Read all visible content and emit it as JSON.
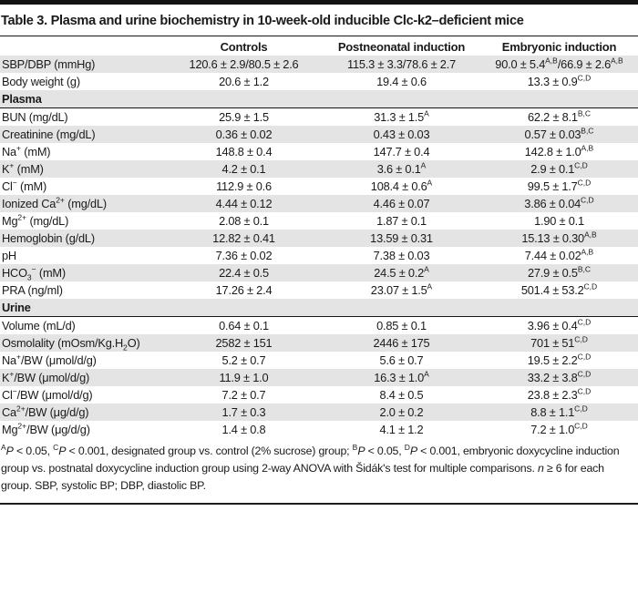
{
  "title": "Table 3. Plasma and urine biochemistry in 10-week-old inducible Clc-k2–deficient mice",
  "columns": [
    "",
    "Controls",
    "Postneonatal induction",
    "Embryonic induction"
  ],
  "rows": [
    {
      "type": "data",
      "label": "SBP/DBP (mmHg)",
      "values": [
        "120.6 ± 2.9/80.5 ± 2.6",
        "115.3 ± 3.3/78.6 ± 2.7",
        "90.0 ± 5.4^{A,B}/66.9 ± 2.6^{A,B}"
      ]
    },
    {
      "type": "data",
      "label": "Body weight (g)",
      "values": [
        "20.6 ± 1.2",
        "19.4 ± 0.6",
        "13.3 ± 0.9^{C,D}"
      ]
    },
    {
      "type": "section",
      "label": "Plasma"
    },
    {
      "type": "data",
      "label": "BUN (mg/dL)",
      "values": [
        "25.9 ± 1.5",
        "31.3 ± 1.5^{A}",
        "62.2 ± 8.1^{B,C}"
      ]
    },
    {
      "type": "data",
      "label": "Creatinine (mg/dL)",
      "values": [
        "0.36 ± 0.02",
        "0.43 ± 0.03",
        "0.57 ± 0.03^{B,C}"
      ]
    },
    {
      "type": "data",
      "label": "Na^{+} (mM)",
      "values": [
        "148.8 ± 0.4",
        "147.7 ± 0.4",
        "142.8 ± 1.0^{A,B}"
      ]
    },
    {
      "type": "data",
      "label": "K^{+} (mM)",
      "values": [
        "4.2 ± 0.1",
        "3.6 ± 0.1^{A}",
        "2.9 ± 0.1^{C,D}"
      ]
    },
    {
      "type": "data",
      "label": "Cl^{−} (mM)",
      "values": [
        "112.9 ± 0.6",
        "108.4 ± 0.6^{A}",
        "99.5 ± 1.7^{C,D}"
      ]
    },
    {
      "type": "data",
      "label": "Ionized Ca^{2+} (mg/dL)",
      "values": [
        "4.44 ± 0.12",
        "4.46 ± 0.07",
        "3.86 ± 0.04^{C,D}"
      ]
    },
    {
      "type": "data",
      "label": "Mg^{2+} (mg/dL)",
      "values": [
        "2.08 ± 0.1",
        "1.87 ± 0.1",
        "1.90 ± 0.1"
      ]
    },
    {
      "type": "data",
      "label": "Hemoglobin (g/dL)",
      "values": [
        "12.82 ± 0.41",
        "13.59 ± 0.31",
        "15.13 ± 0.30^{A,B}"
      ]
    },
    {
      "type": "data",
      "label": "pH",
      "values": [
        "7.36 ± 0.02",
        "7.38 ± 0.03",
        "7.44 ± 0.02^{A,B}"
      ]
    },
    {
      "type": "data",
      "label": "HCO_{3}^{−} (mM)",
      "values": [
        "22.4 ± 0.5",
        "24.5 ± 0.2^{A}",
        "27.9 ± 0.5^{B,C}"
      ]
    },
    {
      "type": "data",
      "label": "PRA (ng/ml)",
      "values": [
        "17.26 ± 2.4",
        "23.07 ± 1.5^{A}",
        "501.4 ± 53.2^{C,D}"
      ]
    },
    {
      "type": "section",
      "label": "Urine"
    },
    {
      "type": "data",
      "label": "Volume (mL/d)",
      "values": [
        "0.64 ± 0.1",
        "0.85 ± 0.1",
        "3.96 ± 0.4^{C,D}"
      ]
    },
    {
      "type": "data",
      "label": "Osmolality (mOsm/Kg.H_{2}O)",
      "values": [
        "2582 ± 151",
        "2446 ± 175",
        "701 ± 51^{C,D}"
      ]
    },
    {
      "type": "data",
      "label": "Na^{+}/BW (μmol/d/g)",
      "values": [
        "5.2 ± 0.7",
        "5.6 ± 0.7",
        "19.5 ± 2.2^{C,D}"
      ]
    },
    {
      "type": "data",
      "label": "K^{+}/BW (μmol/d/g)",
      "values": [
        "11.9 ± 1.0",
        "16.3 ± 1.0^{A}",
        "33.2 ± 3.8^{C,D}"
      ]
    },
    {
      "type": "data",
      "label": "Cl^{−}/BW (μmol/d/g)",
      "values": [
        "7.2 ± 0.7",
        "8.4 ± 0.5",
        "23.8 ± 2.3^{C,D}"
      ]
    },
    {
      "type": "data",
      "label": "Ca^{2+}/BW (μg/d/g)",
      "values": [
        "1.7 ± 0.3",
        "2.0 ± 0.2",
        "8.8 ± 1.1^{C,D}"
      ]
    },
    {
      "type": "data",
      "label": "Mg^{2+}/BW (μg/d/g)",
      "values": [
        "1.4 ± 0.8",
        "4.1 ± 1.2",
        "7.2 ± 1.0^{C,D}"
      ]
    }
  ],
  "footnote": "^{A}//P// < 0.05, ^{C}//P// < 0.001, designated group vs. control (2% sucrose) group; ^{B}//P// < 0.05, ^{D}//P// < 0.001, embryonic doxycycline induction group vs. postnatal doxycycline induction group using 2-way ANOVA with Šidák's test for multiple comparisons. //n// ≥ 6 for each group. SBP, systolic BP; DBP, diastolic BP.",
  "colors": {
    "stripe": "#e4e4e4",
    "rule": "#161616",
    "text": "#1a1a1a",
    "background": "#ffffff"
  }
}
